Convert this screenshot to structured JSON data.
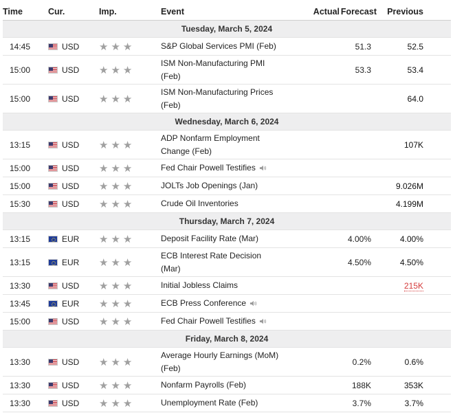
{
  "header": {
    "time": "Time",
    "currency": "Cur.",
    "importance": "Imp.",
    "event": "Event",
    "actual": "Actual",
    "forecast": "Forecast",
    "previous": "Previous"
  },
  "days": [
    {
      "label": "Tuesday, March 5, 2024",
      "events": [
        {
          "time": "14:45",
          "currency": "USD",
          "event": "S&P Global Services PMI (Feb)",
          "actual": "",
          "forecast": "51.3",
          "previous": "52.5",
          "importance": 3
        },
        {
          "time": "15:00",
          "currency": "USD",
          "event_lines": [
            "ISM Non-Manufacturing PMI",
            "(Feb)"
          ],
          "actual": "",
          "forecast": "53.3",
          "previous": "53.4",
          "importance": 3
        },
        {
          "time": "15:00",
          "currency": "USD",
          "event_lines": [
            "ISM Non-Manufacturing Prices",
            "(Feb)"
          ],
          "actual": "",
          "forecast": "",
          "previous": "64.0",
          "importance": 3
        }
      ]
    },
    {
      "label": "Wednesday, March 6, 2024",
      "events": [
        {
          "time": "13:15",
          "currency": "USD",
          "event_lines": [
            "ADP Nonfarm Employment",
            "Change (Feb)"
          ],
          "actual": "",
          "forecast": "",
          "previous": "107K",
          "importance": 3
        },
        {
          "time": "15:00",
          "currency": "USD",
          "event": "Fed Chair Powell Testifies",
          "speech": true,
          "actual": "",
          "forecast": "",
          "previous": "",
          "importance": 3
        },
        {
          "time": "15:00",
          "currency": "USD",
          "event": "JOLTs Job Openings (Jan)",
          "actual": "",
          "forecast": "",
          "previous": "9.026M",
          "importance": 3
        },
        {
          "time": "15:30",
          "currency": "USD",
          "event": "Crude Oil Inventories",
          "actual": "",
          "forecast": "",
          "previous": "4.199M",
          "importance": 3
        }
      ]
    },
    {
      "label": "Thursday, March 7, 2024",
      "events": [
        {
          "time": "13:15",
          "currency": "EUR",
          "event": "Deposit Facility Rate (Mar)",
          "actual": "",
          "forecast": "4.00%",
          "previous": "4.00%",
          "importance": 3
        },
        {
          "time": "13:15",
          "currency": "EUR",
          "event_lines": [
            "ECB Interest Rate Decision",
            "(Mar)"
          ],
          "actual": "",
          "forecast": "4.50%",
          "previous": "4.50%",
          "importance": 3
        },
        {
          "time": "13:30",
          "currency": "USD",
          "event": "Initial Jobless Claims",
          "actual": "",
          "forecast": "",
          "previous": "215K",
          "previous_revised": true,
          "importance": 3
        },
        {
          "time": "13:45",
          "currency": "EUR",
          "event": "ECB Press Conference",
          "speech": true,
          "actual": "",
          "forecast": "",
          "previous": "",
          "importance": 3
        },
        {
          "time": "15:00",
          "currency": "USD",
          "event": "Fed Chair Powell Testifies",
          "speech": true,
          "actual": "",
          "forecast": "",
          "previous": "",
          "importance": 3
        }
      ]
    },
    {
      "label": "Friday, March 8, 2024",
      "events": [
        {
          "time": "13:30",
          "currency": "USD",
          "event_lines": [
            "Average Hourly Earnings (MoM)",
            "(Feb)"
          ],
          "actual": "",
          "forecast": "0.2%",
          "previous": "0.6%",
          "importance": 3
        },
        {
          "time": "13:30",
          "currency": "USD",
          "event": "Nonfarm Payrolls (Feb)",
          "actual": "",
          "forecast": "188K",
          "previous": "353K",
          "importance": 3
        },
        {
          "time": "13:30",
          "currency": "USD",
          "event": "Unemployment Rate (Feb)",
          "actual": "",
          "forecast": "3.7%",
          "previous": "3.7%",
          "importance": 3
        }
      ]
    }
  ],
  "icons": {
    "importance": "star-icon",
    "speech": "speaker-icon",
    "flag_usd": "us-flag-icon",
    "flag_eur": "eu-flag-icon"
  },
  "colors": {
    "day_header_bg": "#eeeeef",
    "revised_previous": "#d43a3a",
    "star": "#a0a0a0"
  }
}
